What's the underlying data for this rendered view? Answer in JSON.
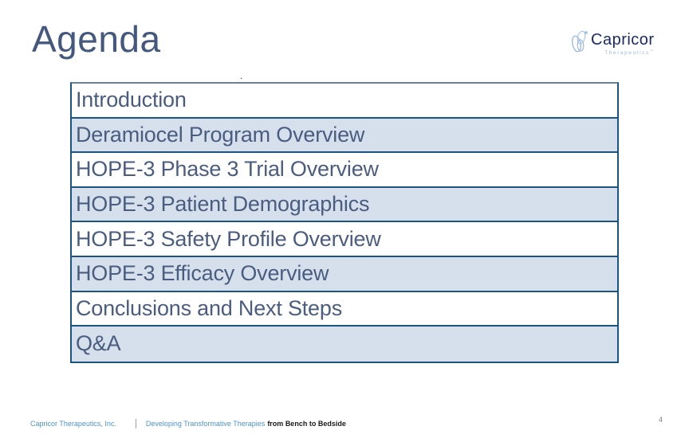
{
  "title": "Agenda",
  "logo": {
    "brand": "Capricor",
    "subtitle": "Therapeutics",
    "trademark": "™"
  },
  "artifacts": {
    "stray_dot": "."
  },
  "agenda": {
    "items": [
      "Introduction",
      "Deramiocel Program Overview",
      "HOPE-3 Phase 3 Trial Overview",
      "HOPE-3 Patient Demographics",
      "HOPE-3 Safety Profile Overview",
      "HOPE-3 Efficacy Overview",
      "Conclusions and Next Steps",
      "Q&A"
    ]
  },
  "footer": {
    "company": "Capricor Therapeutics, Inc.",
    "tagline_blue": "Developing Transformative Therapies",
    "tagline_dark": "from Bench to Bedside",
    "page_number": "4"
  },
  "colors": {
    "title_text": "#44587E",
    "table_border": "#1B5480",
    "table_top_border": "#64819F",
    "row_alt_bg": "#D6E0EC",
    "row_text": "#4A5D80",
    "footer_blue": "#4D94CC",
    "footer_dark": "#1A1A1A",
    "page_number": "#7E8695",
    "logo_navy": "#1B2A6B",
    "logo_light_blue": "#9DBBE0"
  }
}
